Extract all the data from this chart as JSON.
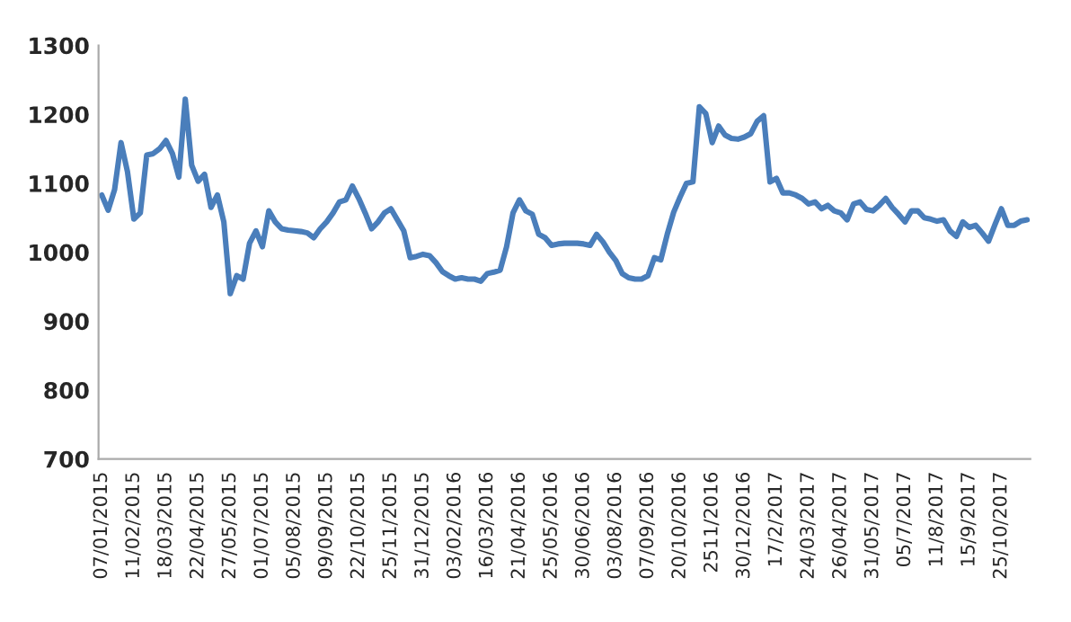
{
  "chart_data": {
    "type": "line",
    "categories": [
      "07/01/2015",
      null,
      null,
      null,
      null,
      "11/02/2015",
      null,
      null,
      null,
      null,
      "18/03/2015",
      null,
      null,
      null,
      null,
      "22/04/2015",
      null,
      null,
      null,
      null,
      "27/05/2015",
      null,
      null,
      null,
      null,
      "01/07/2015",
      null,
      null,
      null,
      null,
      "05/08/2015",
      null,
      null,
      null,
      null,
      "09/09/2015",
      null,
      null,
      null,
      null,
      "22/10/2015",
      null,
      null,
      null,
      null,
      "25/11/2015",
      null,
      null,
      null,
      null,
      "31/12/2015",
      null,
      null,
      null,
      null,
      "03/02/2016",
      null,
      null,
      null,
      null,
      "16/03/2016",
      null,
      null,
      null,
      null,
      "21/04/2016",
      null,
      null,
      null,
      null,
      "25/05/2016",
      null,
      null,
      null,
      null,
      "30/06/2016",
      null,
      null,
      null,
      null,
      "03/08/2016",
      null,
      null,
      null,
      null,
      "07/09/2016",
      null,
      null,
      null,
      null,
      "20/10/2016",
      null,
      null,
      null,
      null,
      "2511/2016",
      null,
      null,
      null,
      null,
      "30/12/2016",
      null,
      null,
      null,
      null,
      "17/2/2017",
      null,
      null,
      null,
      null,
      "24/03/2017",
      null,
      null,
      null,
      null,
      "26/04/2017",
      null,
      null,
      null,
      null,
      "31/05/2017",
      null,
      null,
      null,
      null,
      "05/7/2017",
      null,
      null,
      null,
      null,
      "11/8/2017",
      null,
      null,
      null,
      null,
      "15/9/2017",
      null,
      null,
      null,
      null,
      "25/10/2017",
      null,
      null,
      null,
      null
    ],
    "series": [
      {
        "color": "#4a7ebb",
        "values": [
          1083,
          1061,
          1091,
          1159,
          1117,
          1048,
          1057,
          1141,
          1143,
          1150,
          1162,
          1143,
          1109,
          1222,
          1126,
          1103,
          1113,
          1065,
          1083,
          1044,
          940,
          966,
          961,
          1013,
          1031,
          1008,
          1060,
          1044,
          1034,
          1032,
          1031,
          1030,
          1028,
          1021,
          1034,
          1044,
          1057,
          1073,
          1076,
          1096,
          1078,
          1057,
          1034,
          1044,
          1057,
          1063,
          1047,
          1031,
          992,
          994,
          997,
          995,
          985,
          972,
          966,
          961,
          963,
          961,
          961,
          958,
          969,
          971,
          974,
          1008,
          1057,
          1076,
          1060,
          1055,
          1026,
          1021,
          1010,
          1012,
          1013,
          1013,
          1013,
          1012,
          1010,
          1026,
          1015,
          1000,
          988,
          969,
          963,
          961,
          961,
          966,
          992,
          989,
          1026,
          1058,
          1080,
          1100,
          1102,
          1211,
          1201,
          1159,
          1183,
          1170,
          1165,
          1164,
          1167,
          1172,
          1190,
          1198,
          1102,
          1107,
          1086,
          1086,
          1083,
          1078,
          1070,
          1073,
          1063,
          1068,
          1060,
          1057,
          1047,
          1070,
          1073,
          1062,
          1060,
          1068,
          1078,
          1065,
          1055,
          1044,
          1060,
          1060,
          1050,
          1048,
          1045,
          1047,
          1031,
          1023,
          1044,
          1036,
          1039,
          1028,
          1016,
          1040,
          1063,
          1039,
          1039,
          1045,
          1047
        ]
      }
    ],
    "ylim": [
      700,
      1300
    ],
    "yticks": [
      700,
      800,
      900,
      1000,
      1100,
      1200,
      1300
    ],
    "grid": false,
    "marker": "none",
    "line_style": "solid"
  }
}
